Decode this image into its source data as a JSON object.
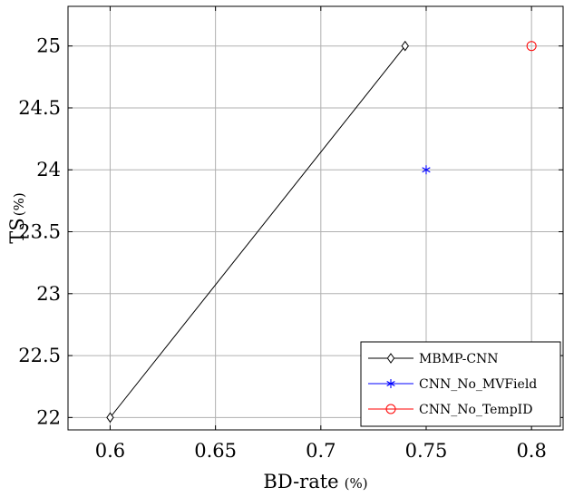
{
  "chart_data": {
    "type": "scatter",
    "xlabel": "BD-rate",
    "xlabel_unit": "(%)",
    "ylabel": "TS",
    "ylabel_unit": "(%)",
    "xlim": [
      0.58,
      0.815
    ],
    "ylim": [
      21.9,
      25.32
    ],
    "xticks": [
      0.6,
      0.65,
      0.7,
      0.75,
      0.8
    ],
    "xtick_labels": [
      "0.6",
      "0.65",
      "0.7",
      "0.75",
      "0.8"
    ],
    "yticks": [
      22,
      22.5,
      23,
      23.5,
      24,
      24.5,
      25
    ],
    "ytick_labels": [
      "22",
      "22.5",
      "23",
      "23.5",
      "24",
      "24.5",
      "25"
    ],
    "grid": true,
    "legend_position": "bottom-right",
    "series": [
      {
        "name": "MBMP-CNN",
        "marker": "diamond",
        "line": true,
        "color": "#000000",
        "x": [
          0.6,
          0.74
        ],
        "y": [
          22,
          25
        ]
      },
      {
        "name": "CNN_No_MVField",
        "marker": "asterisk",
        "line": false,
        "color": "#0000ff",
        "x": [
          0.75
        ],
        "y": [
          24
        ]
      },
      {
        "name": "CNN_No_TempID",
        "marker": "circle",
        "line": false,
        "color": "#ff0000",
        "x": [
          0.8
        ],
        "y": [
          25
        ]
      }
    ]
  }
}
